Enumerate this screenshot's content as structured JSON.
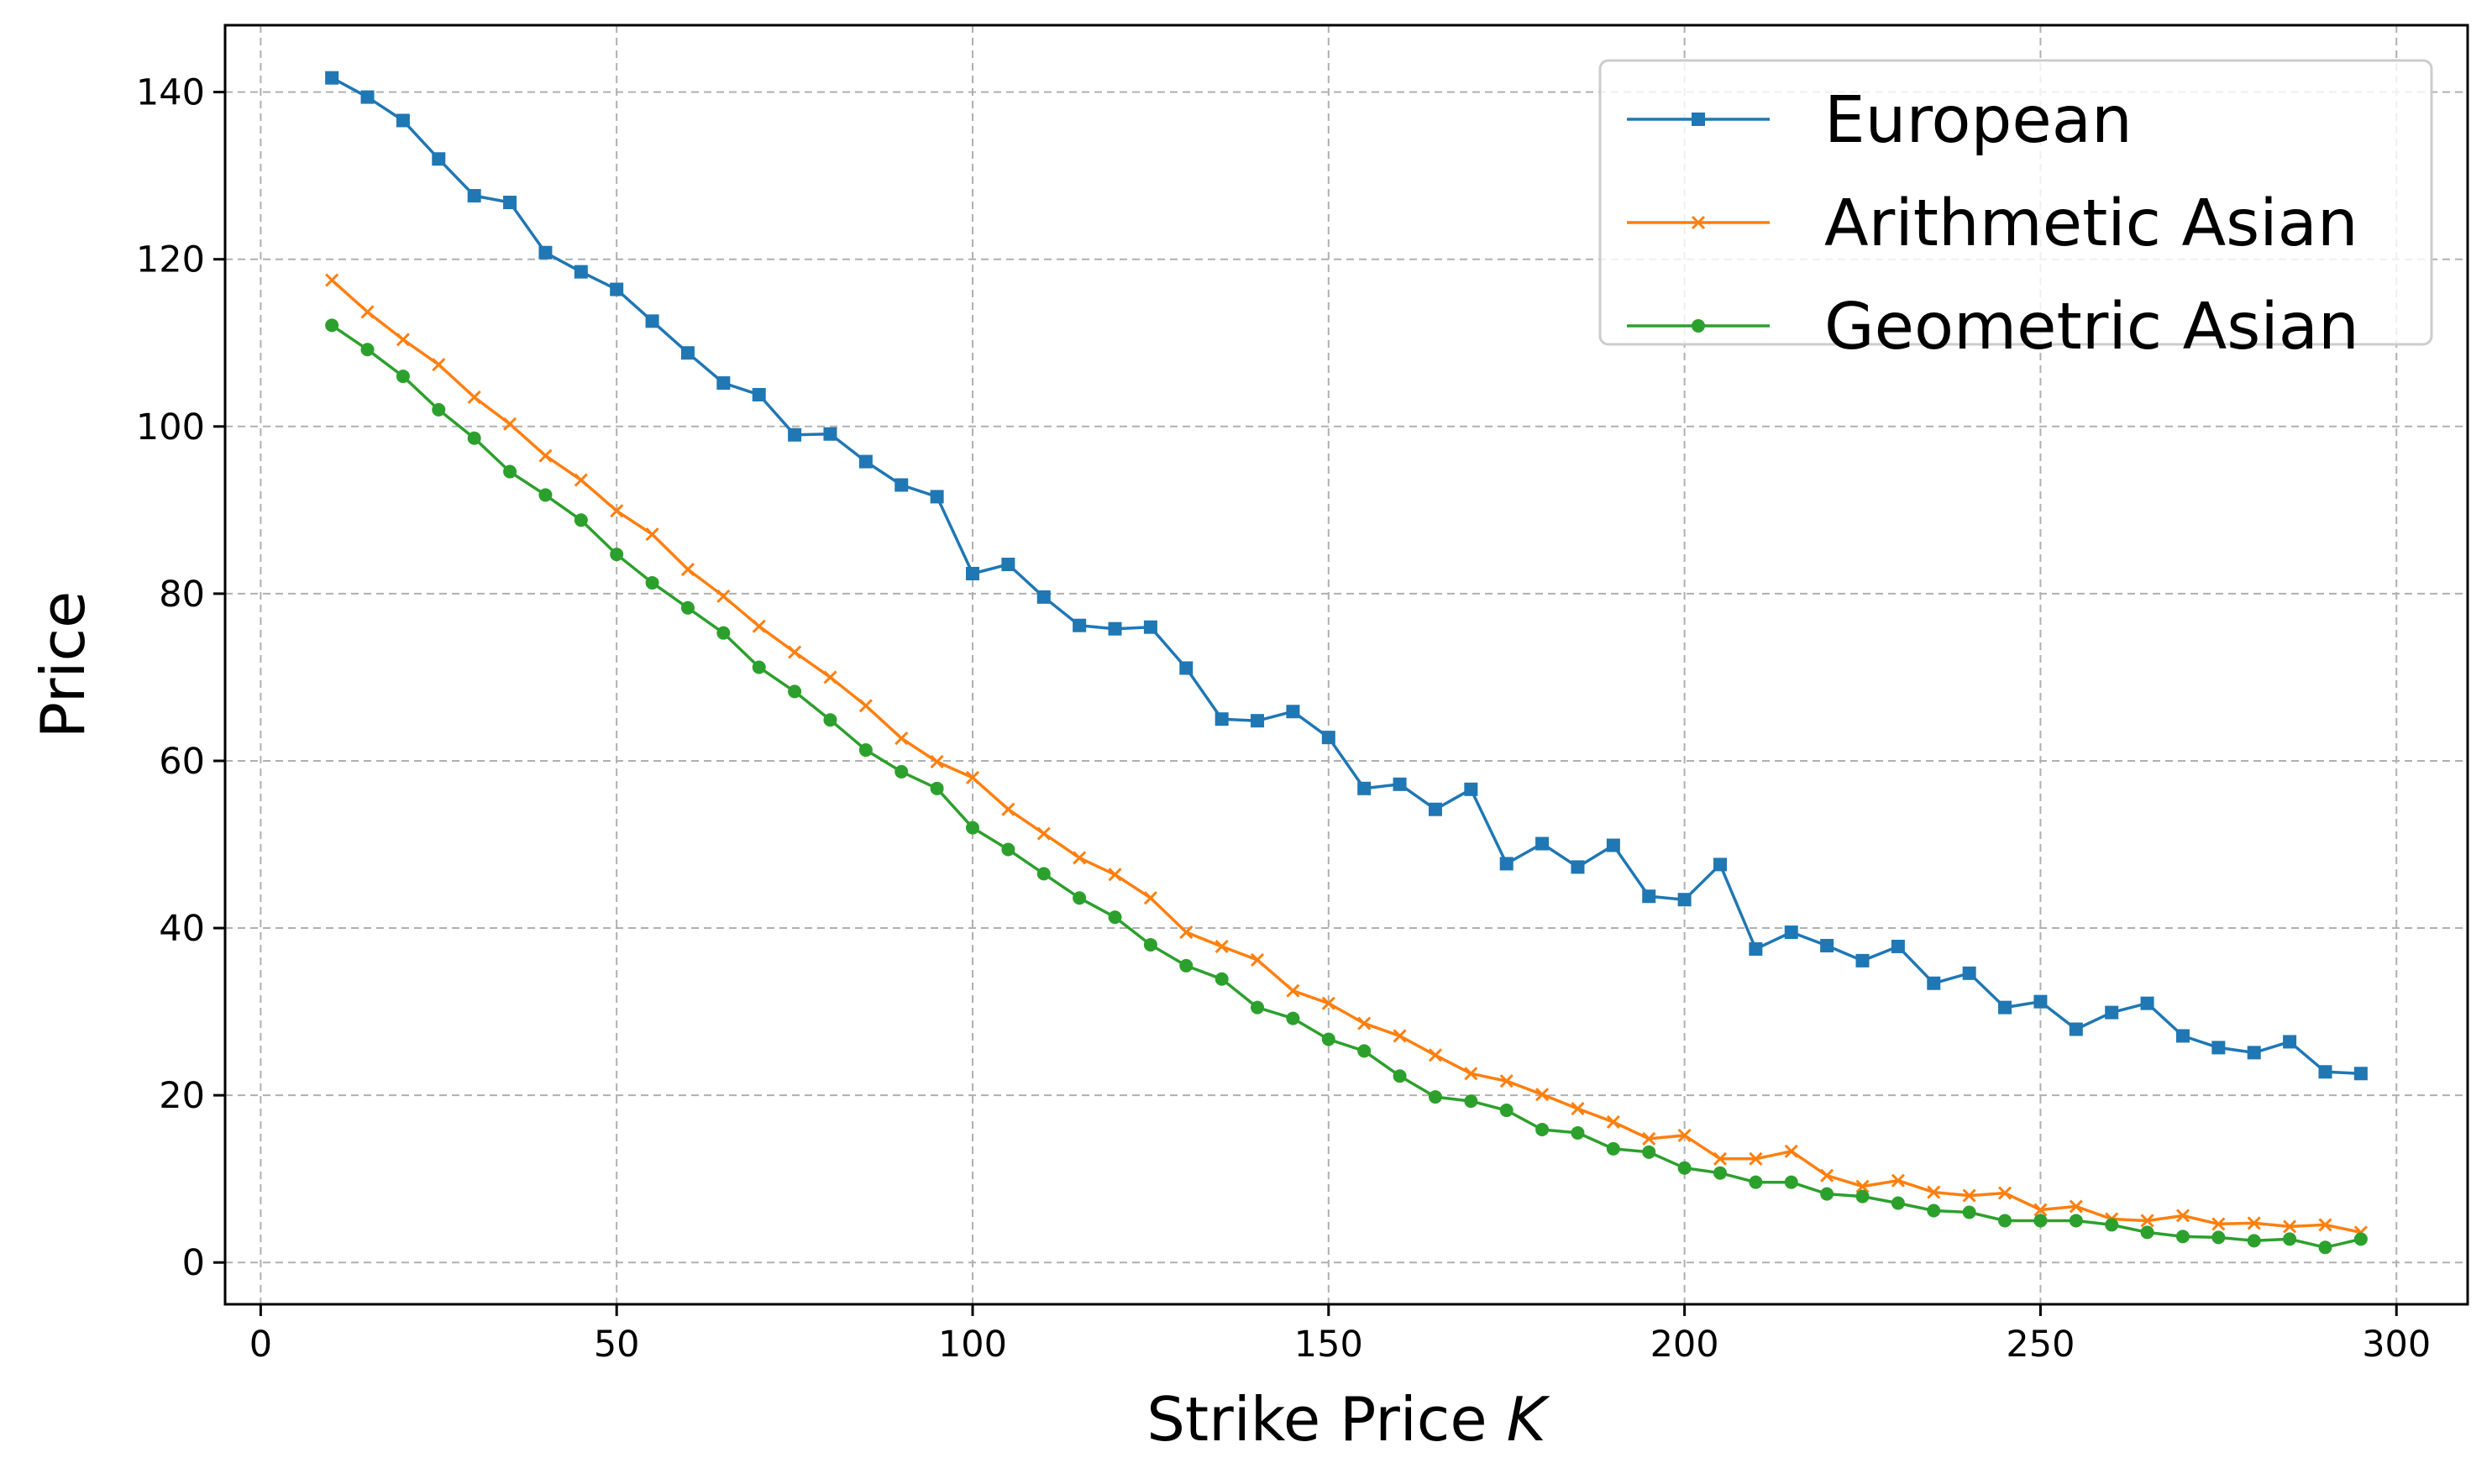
{
  "chart_data": {
    "type": "line",
    "xlabel_text": "Strike Price ",
    "xlabel_var": "K",
    "ylabel": "Price",
    "xlim": [
      -5,
      310
    ],
    "ylim": [
      -5,
      148
    ],
    "xticks": [
      0,
      50,
      100,
      150,
      200,
      250,
      300
    ],
    "yticks": [
      0,
      20,
      40,
      60,
      80,
      100,
      120,
      140
    ],
    "grid": true,
    "legend_position": "top-right",
    "x": [
      10,
      15,
      20,
      25,
      30,
      35,
      40,
      45,
      50,
      55,
      60,
      65,
      70,
      75,
      80,
      85,
      90,
      95,
      100,
      105,
      110,
      115,
      120,
      125,
      130,
      135,
      140,
      145,
      150,
      155,
      160,
      165,
      170,
      175,
      180,
      185,
      190,
      195,
      200,
      205,
      210,
      215,
      220,
      225,
      230,
      235,
      240,
      245,
      250,
      255,
      260,
      265,
      270,
      275,
      280,
      285,
      290,
      295
    ],
    "series": [
      {
        "name": "European",
        "color": "#1f77b4",
        "marker": "square",
        "values": [
          141.7,
          139.4,
          136.6,
          132.0,
          127.6,
          126.8,
          120.8,
          118.5,
          116.4,
          112.6,
          108.8,
          105.2,
          103.8,
          99.0,
          99.1,
          95.8,
          93.0,
          91.6,
          82.4,
          83.5,
          79.6,
          76.2,
          75.8,
          76.0,
          71.1,
          65.0,
          64.8,
          65.9,
          62.8,
          56.7,
          57.2,
          54.2,
          56.6,
          47.7,
          50.1,
          47.3,
          49.9,
          43.8,
          43.4,
          47.6,
          37.5,
          39.5,
          37.9,
          36.1,
          37.8,
          33.4,
          34.6,
          30.5,
          31.2,
          27.9,
          29.9,
          31.0,
          27.1,
          25.7,
          25.1,
          26.4,
          22.8,
          22.6
        ]
      },
      {
        "name": "Arithmetic Asian",
        "color": "#ff7f0e",
        "marker": "x",
        "values": [
          117.5,
          113.7,
          110.4,
          107.4,
          103.5,
          100.3,
          96.5,
          93.6,
          89.9,
          87.1,
          82.9,
          79.7,
          76.1,
          73.0,
          70.0,
          66.6,
          62.7,
          59.9,
          58.0,
          54.2,
          51.3,
          48.4,
          46.4,
          43.6,
          39.5,
          37.8,
          36.2,
          32.5,
          31.0,
          28.6,
          27.1,
          24.8,
          22.6,
          21.7,
          20.1,
          18.4,
          16.8,
          14.8,
          15.2,
          12.4,
          12.4,
          13.3,
          10.4,
          9.1,
          9.8,
          8.4,
          8.0,
          8.3,
          6.3,
          6.7,
          5.2,
          5.0,
          5.6,
          4.6,
          4.7,
          4.3,
          4.5,
          3.6
        ]
      },
      {
        "name": "Geometric Asian",
        "color": "#2ca02c",
        "marker": "circle",
        "values": [
          112.1,
          109.2,
          106.0,
          102.0,
          98.6,
          94.6,
          91.8,
          88.8,
          84.7,
          81.3,
          78.3,
          75.3,
          71.2,
          68.3,
          64.9,
          61.3,
          58.7,
          56.7,
          52.0,
          49.4,
          46.5,
          43.6,
          41.3,
          38.0,
          35.5,
          33.9,
          30.5,
          29.2,
          26.7,
          25.3,
          22.3,
          19.8,
          19.3,
          18.2,
          15.9,
          15.5,
          13.6,
          13.2,
          11.3,
          10.7,
          9.6,
          9.6,
          8.2,
          7.9,
          7.1,
          6.2,
          6.0,
          5.0,
          5.0,
          5.0,
          4.5,
          3.6,
          3.1,
          3.0,
          2.6,
          2.8,
          1.8,
          2.8
        ]
      }
    ]
  }
}
